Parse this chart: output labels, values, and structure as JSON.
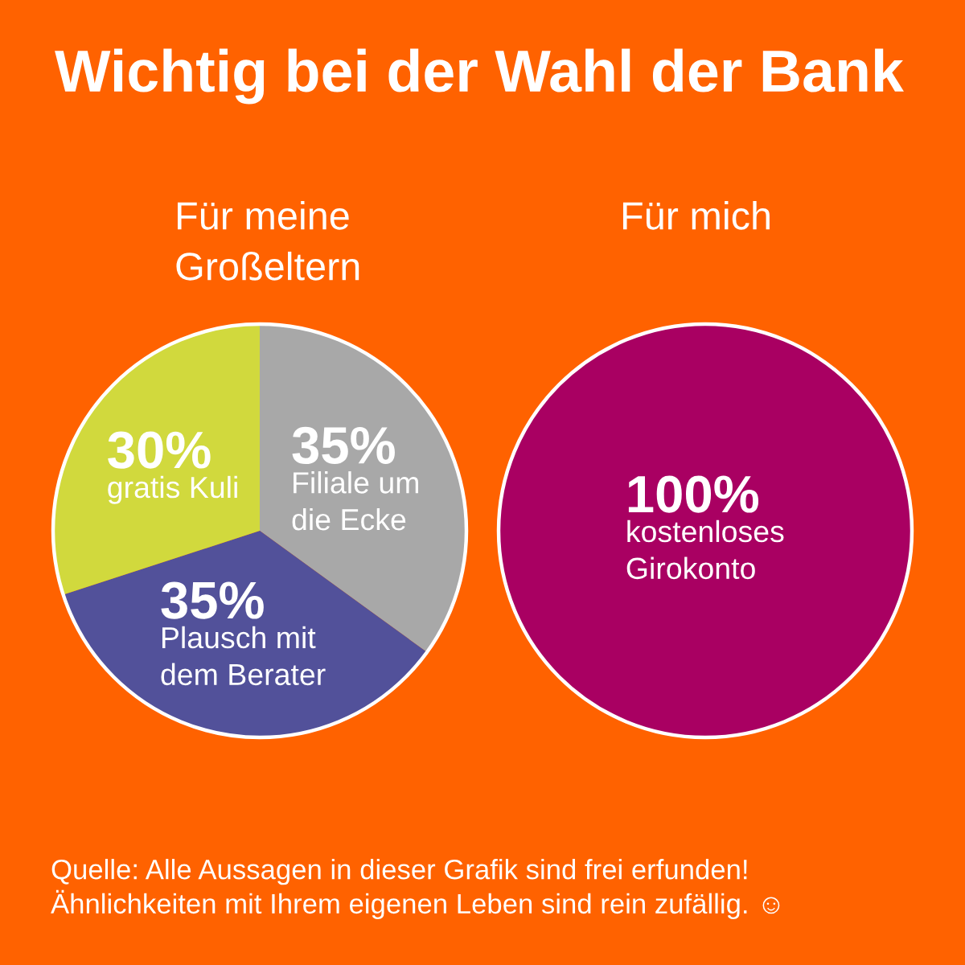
{
  "chart_data": [
    {
      "type": "pie",
      "title": "Wichtig bei der Wahl der Bank",
      "subtitle": "Für meine\nGroßeltern",
      "categories": [
        "Filiale um\ndie Ecke",
        "Plausch mit\ndem Berater",
        "gratis Kuli"
      ],
      "values": [
        35,
        35,
        30
      ],
      "value_labels": [
        "35%",
        "35%",
        "30%"
      ],
      "colors": [
        "#a8a8a8",
        "#52519a",
        "#d1d93d"
      ]
    },
    {
      "type": "pie",
      "subtitle": "Für mich",
      "categories": [
        "kostenloses\nGirokonto"
      ],
      "values": [
        100
      ],
      "value_labels": [
        "100%"
      ],
      "colors": [
        "#a90062"
      ],
      "annotations": [
        "Quelle: Alle Aussagen in dieser Grafik sind frei erfunden!\nÄhnlichkeiten mit Ihrem eigenen Leben sind rein zufällig. ☺"
      ]
    }
  ]
}
